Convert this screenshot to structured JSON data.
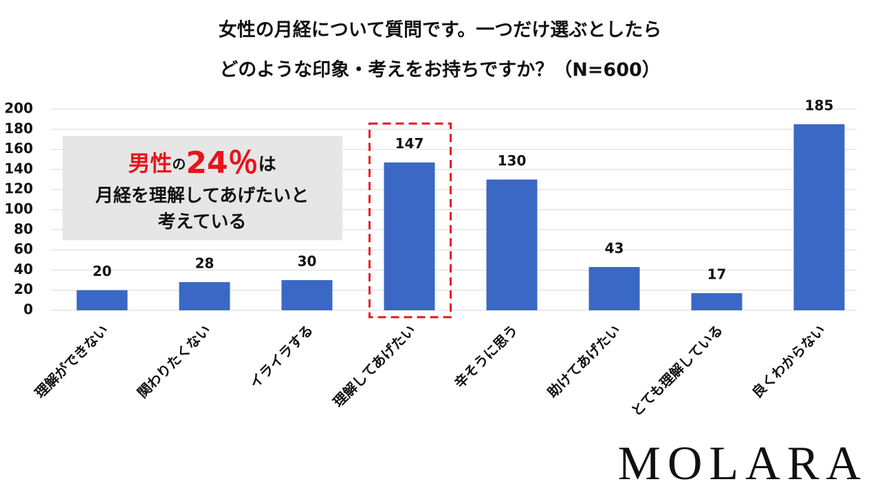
{
  "chart_data": {
    "type": "bar",
    "title": [
      "女性の月経について質問です。一つだけ選ぶとしたら",
      "どのような印象・考えをお持ちですか？（N=600）"
    ],
    "categories": [
      "理解ができない",
      "関わりたくない",
      "イライラする",
      "理解してあげたい",
      "辛そうに思う",
      "助けてあげたい",
      "とても理解している",
      "良くわからない"
    ],
    "values": [
      20,
      28,
      30,
      147,
      130,
      43,
      17,
      185
    ],
    "color": "#3a68c4",
    "ylim": [
      0,
      200
    ],
    "yticks": [
      0,
      20,
      40,
      60,
      80,
      100,
      120,
      140,
      160,
      180,
      200
    ],
    "grid": true,
    "highlight_index": 3,
    "highlight_color": "#e8141b",
    "annotation": {
      "first_line": [
        "男性",
        "の",
        "24％",
        "は"
      ],
      "lines": [
        "月経を理解してあげたいと",
        "考えている"
      ]
    }
  },
  "logo": "MOLARA"
}
